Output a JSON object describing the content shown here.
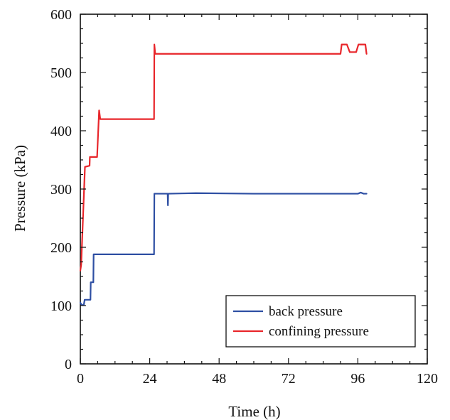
{
  "chart_data": {
    "type": "line",
    "title": "",
    "xlabel": "Time (h)",
    "ylabel": "Pressure (kPa)",
    "xlim": [
      0,
      120
    ],
    "ylim": [
      0,
      600
    ],
    "xticks": [
      0,
      24,
      48,
      72,
      96,
      120
    ],
    "yticks": [
      0,
      100,
      200,
      300,
      400,
      500,
      600
    ],
    "x_tick_labels": [
      "0",
      "24",
      "48",
      "72",
      "96",
      "120"
    ],
    "y_tick_labels": [
      "0",
      "100",
      "200",
      "300",
      "400",
      "500",
      "600"
    ],
    "grid": false,
    "legend_position": "bottom-right",
    "series": [
      {
        "name": "back pressure",
        "color": "#2e4fa3",
        "points": [
          [
            0,
            105
          ],
          [
            0.5,
            101
          ],
          [
            1.2,
            101
          ],
          [
            1.5,
            110
          ],
          [
            3.5,
            110
          ],
          [
            3.6,
            140
          ],
          [
            4.5,
            140
          ],
          [
            4.6,
            188
          ],
          [
            25.5,
            188
          ],
          [
            25.6,
            292
          ],
          [
            30.2,
            292
          ],
          [
            30.3,
            272
          ],
          [
            30.4,
            292
          ],
          [
            40,
            293
          ],
          [
            60,
            292
          ],
          [
            80,
            292
          ],
          [
            96,
            292
          ],
          [
            97,
            294
          ],
          [
            98,
            292
          ],
          [
            99,
            292
          ]
        ]
      },
      {
        "name": "confining pressure",
        "color": "#e8262b",
        "points": [
          [
            0,
            160
          ],
          [
            0.3,
            170
          ],
          [
            1.6,
            338
          ],
          [
            3.2,
            340
          ],
          [
            3.3,
            355
          ],
          [
            5.8,
            355
          ],
          [
            6.5,
            435
          ],
          [
            6.9,
            420
          ],
          [
            25.5,
            420
          ],
          [
            25.6,
            548
          ],
          [
            25.9,
            532
          ],
          [
            60,
            532
          ],
          [
            90,
            532
          ],
          [
            90.4,
            548
          ],
          [
            92.2,
            548
          ],
          [
            93.2,
            535
          ],
          [
            95.4,
            535
          ],
          [
            96.2,
            548
          ],
          [
            98.6,
            548
          ],
          [
            99,
            532
          ]
        ]
      }
    ]
  }
}
